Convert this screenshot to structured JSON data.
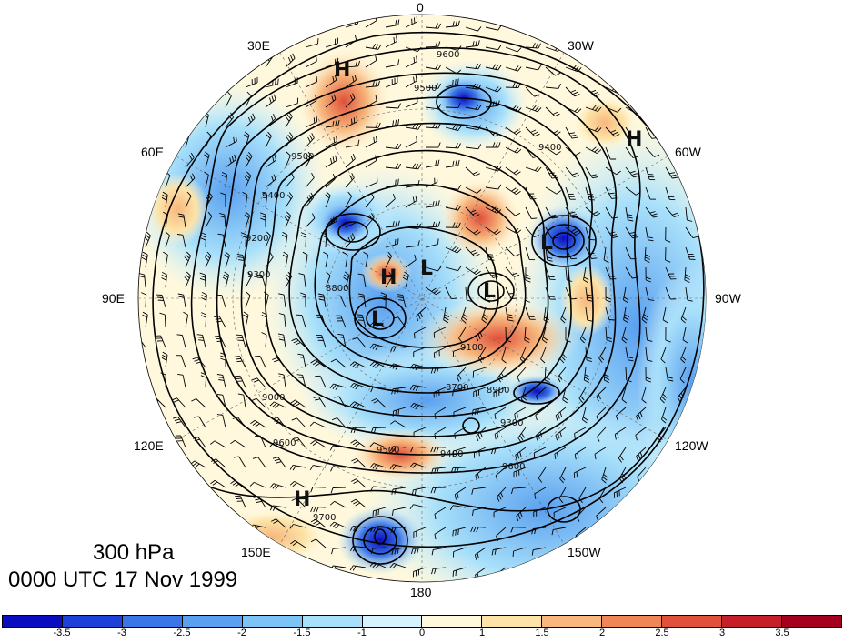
{
  "map": {
    "longitude_labels": {
      "lon_0": "0",
      "lon_30w": "30W",
      "lon_60w": "60W",
      "lon_90w": "90W",
      "lon_120w": "120W",
      "lon_150w": "150W",
      "lon_180": "180",
      "lon_150e": "150E",
      "lon_120e": "120E",
      "lon_90e": "90E",
      "lon_60e": "60E",
      "lon_30e": "30E"
    },
    "pressure_centers": [
      {
        "type": "H",
        "label": "H"
      },
      {
        "type": "H",
        "label": "H"
      },
      {
        "type": "H",
        "label": "H"
      },
      {
        "type": "H",
        "label": "H"
      },
      {
        "type": "L",
        "label": "L"
      },
      {
        "type": "L",
        "label": "L"
      },
      {
        "type": "L",
        "label": "L"
      },
      {
        "type": "L",
        "label": "L"
      }
    ],
    "contour_labels": [
      "9600",
      "9500",
      "9400",
      "9300",
      "9200",
      "9100",
      "9000",
      "8900",
      "8800",
      "8700",
      "9700"
    ],
    "colors": {
      "ocean_neutral": "#ffffff",
      "contour": "#000000"
    }
  },
  "annotation": {
    "level": "300 hPa",
    "time": "0000 UTC 17 Nov 1999"
  },
  "colorbar": {
    "colors": [
      "#0b0bbf",
      "#1f3fd9",
      "#3a76e6",
      "#5aa0ef",
      "#7cc4f5",
      "#a8e0fa",
      "#d6f2fc",
      "#fff8dc",
      "#fde3a7",
      "#f7b77d",
      "#ef8656",
      "#e0503a",
      "#c51f2a",
      "#a5001e"
    ],
    "tick_labels": [
      "-3.5",
      "-3",
      "-2.5",
      "-2",
      "-1.5",
      "-1",
      "0",
      "1",
      "1.5",
      "2",
      "2.5",
      "3",
      "3.5"
    ]
  }
}
